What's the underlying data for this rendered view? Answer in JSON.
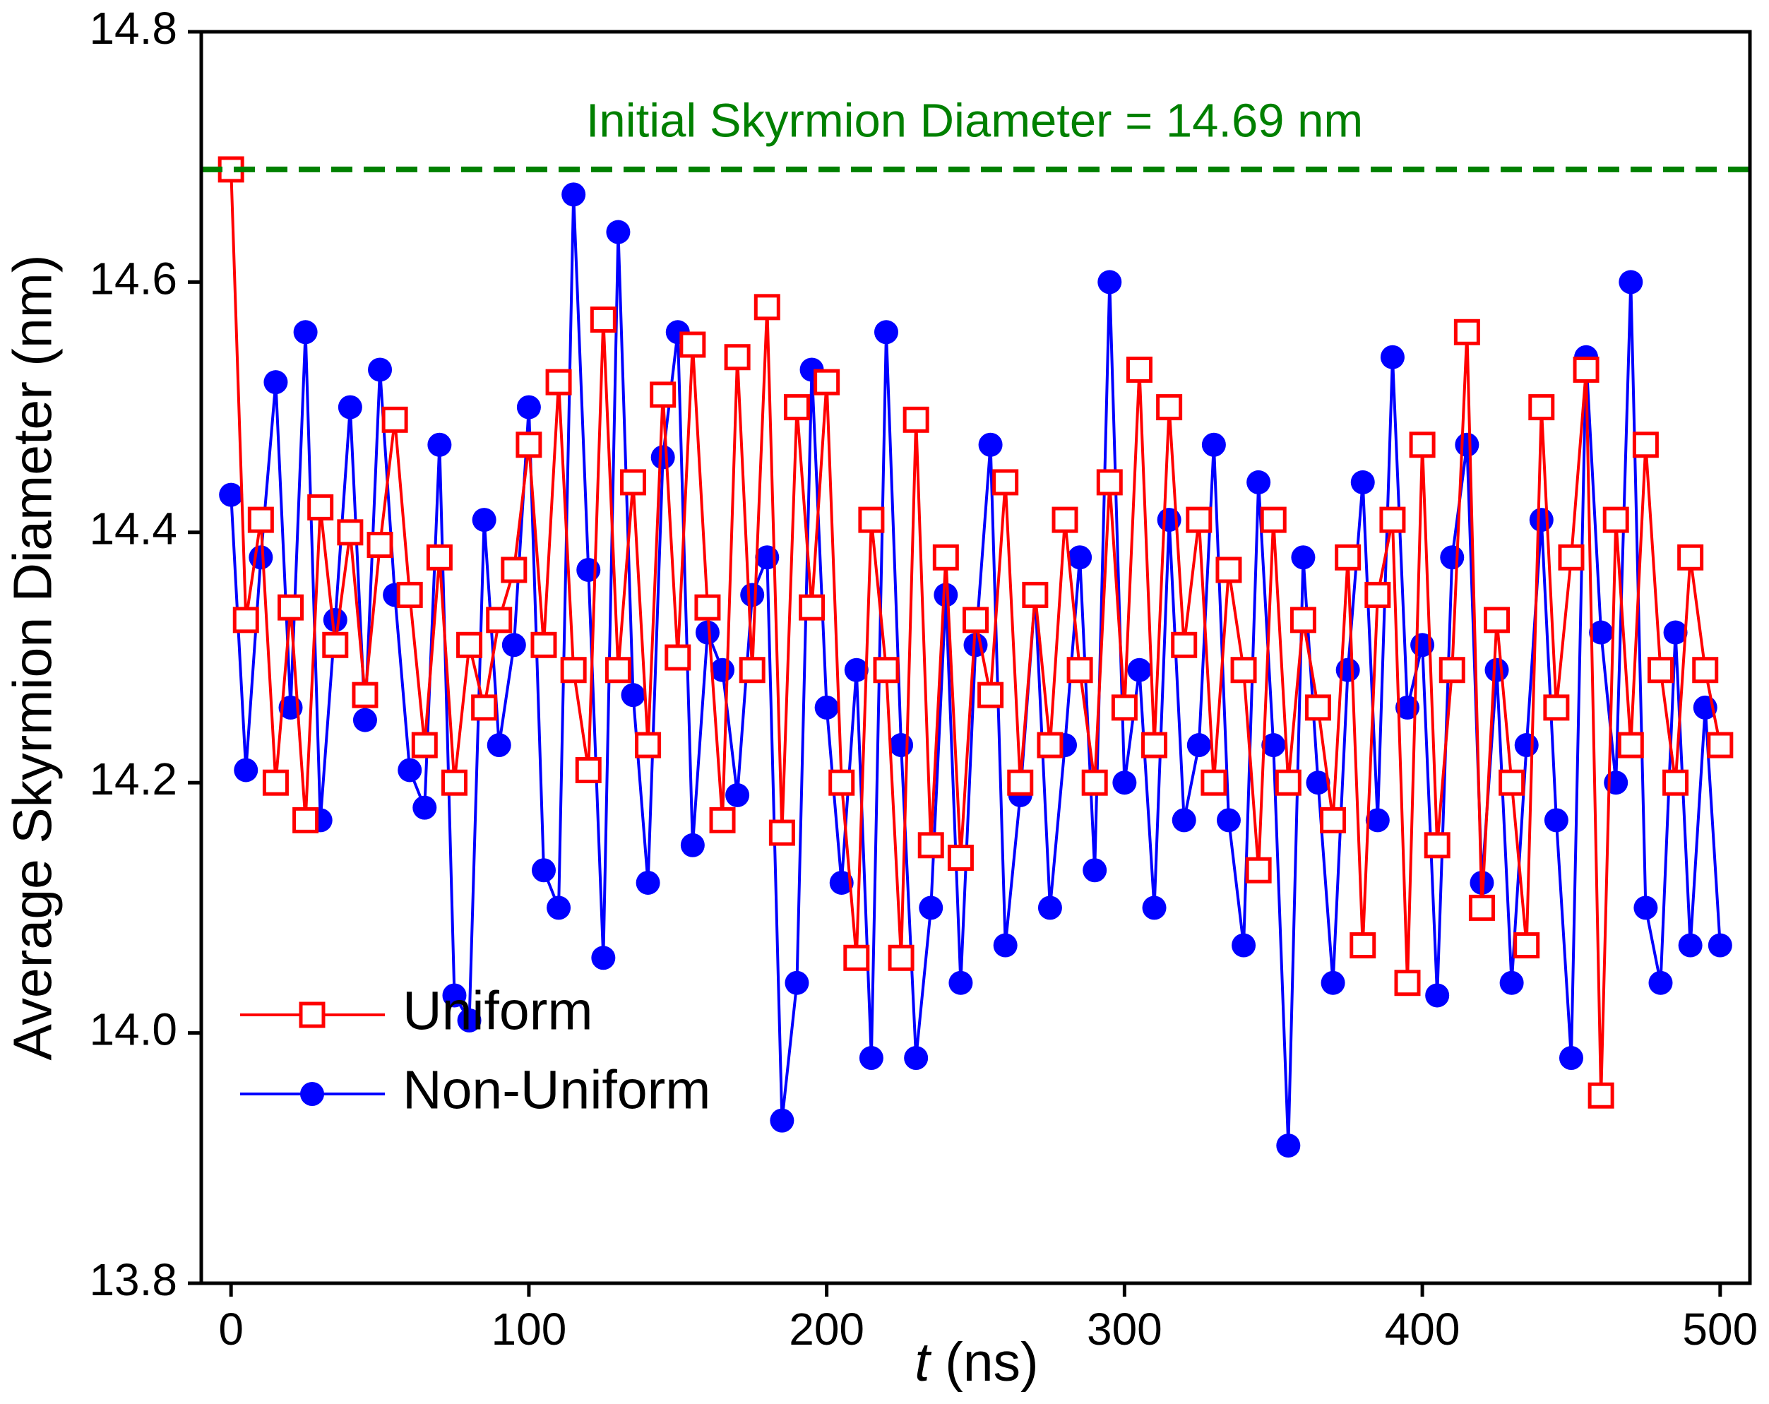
{
  "chart_data": {
    "type": "line",
    "xlabel": "t (ns)",
    "ylabel": "Average Skyrmion Diameter (nm)",
    "xlim": [
      -10,
      510
    ],
    "ylim": [
      13.8,
      14.8
    ],
    "xticks": [
      0,
      100,
      200,
      300,
      400,
      500
    ],
    "yticks": [
      13.8,
      {
        "value": 14,
        "label": "14.0"
      },
      14.2,
      14.4,
      14.6,
      14.8
    ],
    "legend": "lower left",
    "reference_line": {
      "value": 14.69,
      "color": "#008000",
      "label": "Initial Skyrmion Diameter = 14.69 nm"
    },
    "x": [
      0,
      5,
      10,
      15,
      20,
      25,
      30,
      35,
      40,
      45,
      50,
      55,
      60,
      65,
      70,
      75,
      80,
      85,
      90,
      95,
      100,
      105,
      110,
      115,
      120,
      125,
      130,
      135,
      140,
      145,
      150,
      155,
      160,
      165,
      170,
      175,
      180,
      185,
      190,
      195,
      200,
      205,
      210,
      215,
      220,
      225,
      230,
      235,
      240,
      245,
      250,
      255,
      260,
      265,
      270,
      275,
      280,
      285,
      290,
      295,
      300,
      305,
      310,
      315,
      320,
      325,
      330,
      335,
      340,
      345,
      350,
      355,
      360,
      365,
      370,
      375,
      380,
      385,
      390,
      395,
      400,
      405,
      410,
      415,
      420,
      425,
      430,
      435,
      440,
      445,
      450,
      455,
      460,
      465,
      470,
      475,
      480,
      485,
      490,
      495,
      500
    ],
    "series": [
      {
        "name": "Non-Uniform",
        "color": "#0000ff",
        "marker": "circle",
        "values": [
          14.43,
          14.21,
          14.38,
          14.52,
          14.26,
          14.56,
          14.17,
          14.33,
          14.5,
          14.25,
          14.53,
          14.35,
          14.21,
          14.18,
          14.47,
          14.03,
          14.01,
          14.41,
          14.23,
          14.31,
          14.5,
          14.13,
          14.1,
          14.67,
          14.37,
          14.06,
          14.64,
          14.27,
          14.12,
          14.46,
          14.56,
          14.15,
          14.32,
          14.29,
          14.19,
          14.35,
          14.38,
          13.93,
          14.04,
          14.53,
          14.26,
          14.12,
          14.29,
          13.98,
          14.56,
          14.23,
          13.98,
          14.1,
          14.35,
          14.04,
          14.31,
          14.47,
          14.07,
          14.19,
          14.35,
          14.1,
          14.23,
          14.38,
          14.13,
          14.6,
          14.2,
          14.29,
          14.1,
          14.41,
          14.17,
          14.23,
          14.47,
          14.17,
          14.07,
          14.44,
          14.23,
          13.91,
          14.38,
          14.2,
          14.04,
          14.29,
          14.44,
          14.17,
          14.54,
          14.26,
          14.31,
          14.03,
          14.38,
          14.47,
          14.12,
          14.29,
          14.04,
          14.23,
          14.41,
          14.17,
          13.98,
          14.54,
          14.32,
          14.2,
          14.6,
          14.1,
          14.04,
          14.32,
          14.07,
          14.26,
          14.07
        ]
      },
      {
        "name": "Uniform",
        "color": "#ff0000",
        "marker": "square",
        "values": [
          14.69,
          14.33,
          14.41,
          14.2,
          14.34,
          14.17,
          14.42,
          14.31,
          14.4,
          14.27,
          14.39,
          14.49,
          14.35,
          14.23,
          14.38,
          14.2,
          14.31,
          14.26,
          14.33,
          14.37,
          14.47,
          14.31,
          14.52,
          14.29,
          14.21,
          14.57,
          14.29,
          14.44,
          14.23,
          14.51,
          14.3,
          14.55,
          14.34,
          14.17,
          14.54,
          14.29,
          14.58,
          14.16,
          14.5,
          14.34,
          14.52,
          14.2,
          14.06,
          14.41,
          14.29,
          14.06,
          14.49,
          14.15,
          14.38,
          14.14,
          14.33,
          14.27,
          14.44,
          14.2,
          14.35,
          14.23,
          14.41,
          14.29,
          14.2,
          14.44,
          14.26,
          14.53,
          14.23,
          14.5,
          14.31,
          14.41,
          14.2,
          14.37,
          14.29,
          14.13,
          14.41,
          14.2,
          14.33,
          14.26,
          14.17,
          14.38,
          14.07,
          14.35,
          14.41,
          14.04,
          14.47,
          14.15,
          14.29,
          14.56,
          14.1,
          14.33,
          14.2,
          14.07,
          14.5,
          14.26,
          14.38,
          14.53,
          13.95,
          14.41,
          14.23,
          14.47,
          14.29,
          14.2,
          14.38,
          14.29,
          14.23
        ]
      }
    ]
  }
}
